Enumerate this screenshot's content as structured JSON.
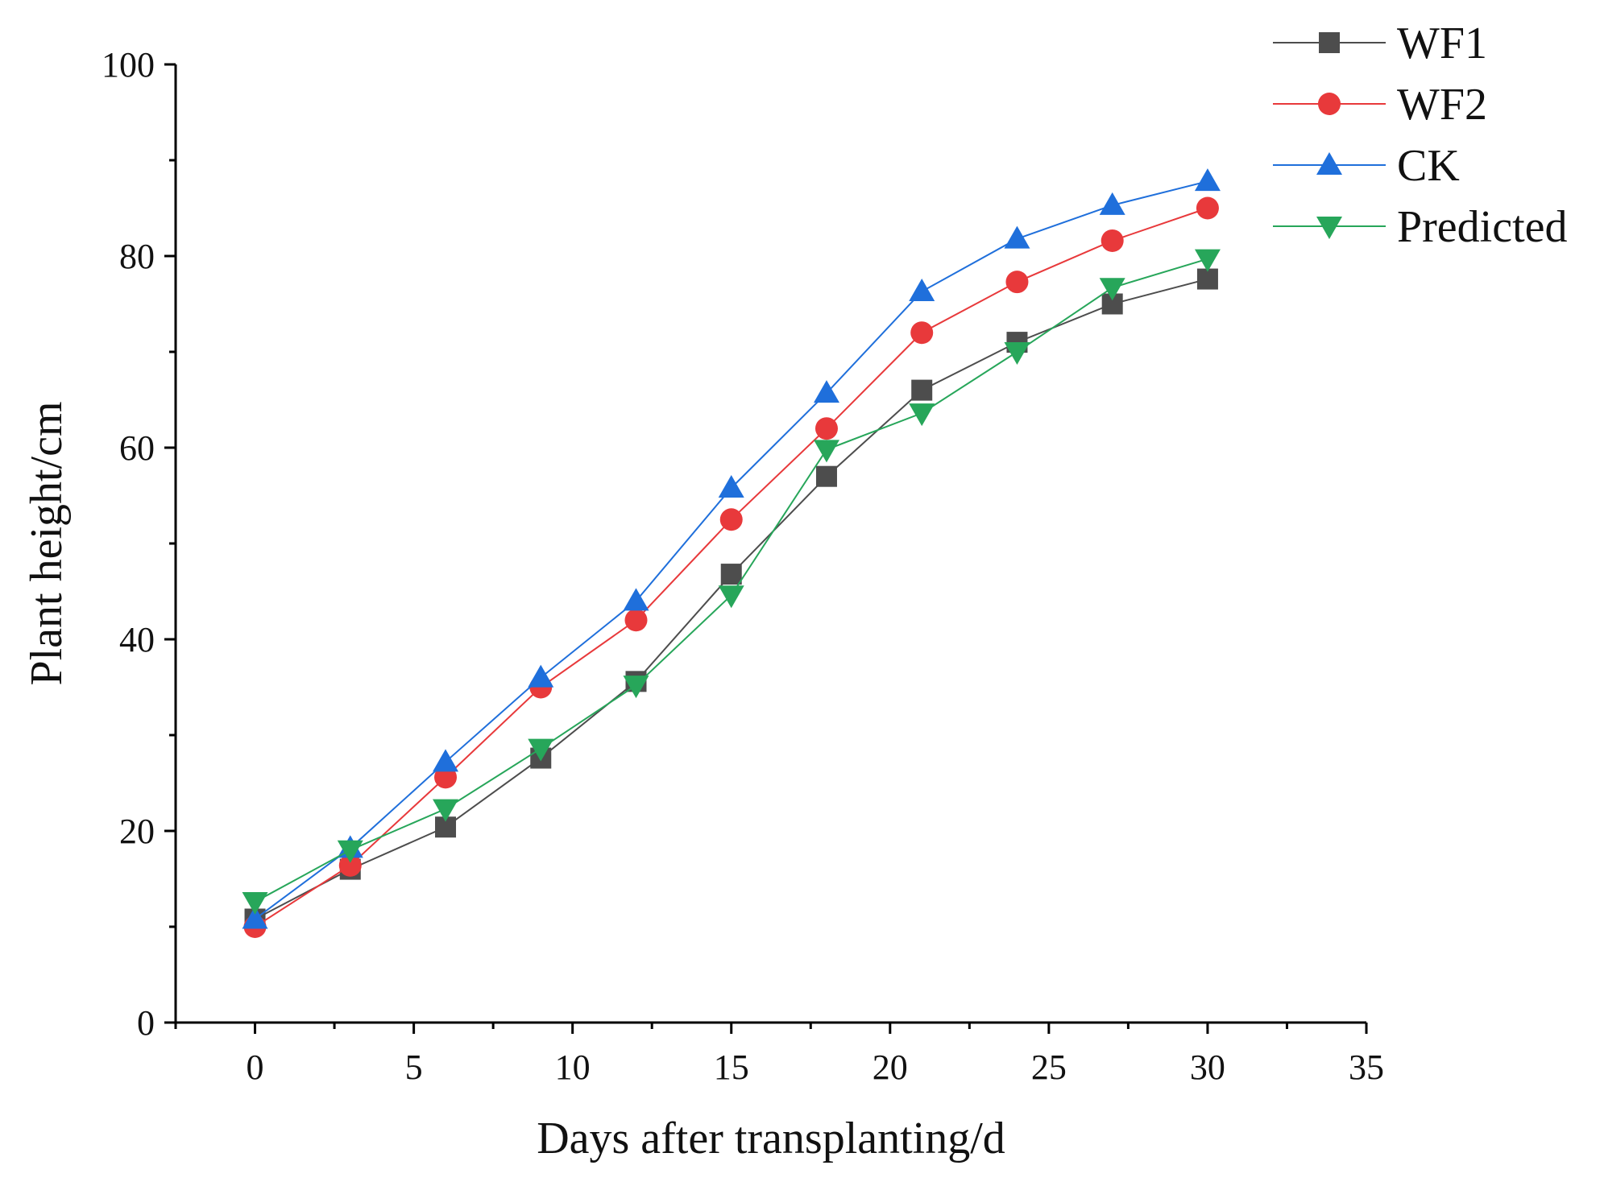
{
  "chart_data": {
    "type": "line",
    "xlabel": "Days after transplanting/d",
    "ylabel": "Plant height/cm",
    "xlim": [
      -2.5,
      35
    ],
    "ylim": [
      0,
      100
    ],
    "xticks": [
      0,
      5,
      10,
      15,
      20,
      25,
      30,
      35
    ],
    "yticks": [
      0,
      20,
      40,
      60,
      80,
      100
    ],
    "x": [
      0,
      3,
      6,
      9,
      12,
      15,
      18,
      21,
      24,
      27,
      30
    ],
    "legend_position": "top-right",
    "series": [
      {
        "name": "WF1",
        "color": "#4d4d4d",
        "marker": "square",
        "values": [
          10.8,
          16.0,
          20.4,
          27.6,
          35.6,
          46.8,
          57.0,
          66.0,
          71.0,
          75.0,
          77.6
        ]
      },
      {
        "name": "WF2",
        "color": "#e8393b",
        "marker": "circle",
        "values": [
          10.0,
          16.4,
          25.6,
          35.0,
          42.0,
          52.5,
          62.0,
          72.0,
          77.3,
          81.6,
          85.0
        ]
      },
      {
        "name": "CK",
        "color": "#1f6fdb",
        "marker": "triangle-up",
        "values": [
          10.8,
          18.2,
          27.2,
          36.0,
          44.0,
          55.8,
          65.7,
          76.3,
          81.8,
          85.3,
          87.8
        ]
      },
      {
        "name": "Predicted",
        "color": "#27a65a",
        "marker": "triangle-down",
        "values": [
          12.6,
          18.0,
          22.3,
          28.6,
          35.2,
          44.6,
          59.8,
          63.6,
          70.0,
          76.7,
          79.7
        ]
      }
    ]
  }
}
